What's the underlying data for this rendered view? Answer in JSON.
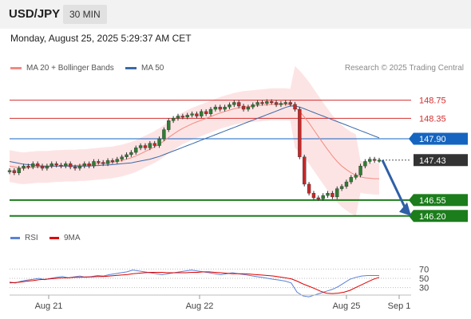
{
  "header": {
    "symbol": "USD/JPY",
    "timeframe": "30 MIN"
  },
  "timestamp": "Monday, August 25, 2025 5:29:37 AM CET",
  "legend": {
    "ma20": {
      "label": "MA 20 + Bollinger Bands",
      "color": "#f28b82"
    },
    "ma50": {
      "label": "MA 50",
      "color": "#3c6aa8"
    }
  },
  "credit": "Research © 2025 Trading Central",
  "rsi_legend": {
    "rsi": {
      "label": "RSI",
      "color": "#5b82d6"
    },
    "ma9": {
      "label": "9MA",
      "color": "#e00000"
    }
  },
  "chart_data": [
    {
      "type": "candlestick",
      "x_axis": {
        "ticks": [
          "Aug 21",
          "Aug 22",
          "Aug 25",
          "Sep 1"
        ]
      },
      "y_axis": {
        "range": [
          145.95,
          149.2
        ]
      },
      "grid": false,
      "levels": [
        {
          "value": 148.75,
          "label": "148.75",
          "color": "#d32f2f",
          "style": "red-line"
        },
        {
          "value": 148.35,
          "label": "148.35",
          "color": "#d32f2f",
          "style": "red-line"
        },
        {
          "value": 147.9,
          "label": "147.90",
          "color": "#1565c0",
          "style": "blue-line"
        },
        {
          "value": 147.43,
          "label": "147.43",
          "color": "#333333",
          "style": "current-price"
        },
        {
          "value": 146.55,
          "label": "146.55",
          "color": "#1b7d1b",
          "style": "green-line"
        },
        {
          "value": 146.2,
          "label": "146.20",
          "color": "#1b7d1b",
          "style": "green-line"
        }
      ],
      "close_series": [
        147.2,
        147.15,
        147.25,
        147.3,
        147.28,
        147.35,
        147.3,
        147.25,
        147.3,
        147.35,
        147.32,
        147.3,
        147.35,
        147.28,
        147.25,
        147.3,
        147.35,
        147.3,
        147.4,
        147.38,
        147.35,
        147.42,
        147.4,
        147.45,
        147.5,
        147.55,
        147.6,
        147.7,
        147.75,
        147.7,
        147.8,
        147.75,
        147.9,
        148.1,
        148.3,
        148.35,
        148.4,
        148.38,
        148.42,
        148.45,
        148.4,
        148.5,
        148.45,
        148.55,
        148.6,
        148.55,
        148.6,
        148.65,
        148.7,
        148.62,
        148.55,
        148.6,
        148.65,
        148.7,
        148.68,
        148.72,
        148.7,
        148.65,
        148.68,
        148.7,
        148.66,
        148.55,
        147.5,
        146.9,
        146.7,
        146.6,
        146.58,
        146.65,
        146.7,
        146.62,
        146.8,
        146.85,
        146.95,
        147.05,
        147.1,
        147.3,
        147.4,
        147.45,
        147.42,
        147.43
      ],
      "ma20_series": [
        147.3,
        147.28,
        147.26,
        147.25,
        147.26,
        147.27,
        147.28,
        147.28,
        147.28,
        147.29,
        147.3,
        147.3,
        147.31,
        147.31,
        147.31,
        147.32,
        147.32,
        147.33,
        147.34,
        147.35,
        147.36,
        147.37,
        147.38,
        147.4,
        147.42,
        147.45,
        147.48,
        147.52,
        147.57,
        147.62,
        147.67,
        147.72,
        147.78,
        147.85,
        147.93,
        148.0,
        148.07,
        148.13,
        148.18,
        148.23,
        148.27,
        148.31,
        148.35,
        148.39,
        148.43,
        148.47,
        148.5,
        148.53,
        148.56,
        148.58,
        148.6,
        148.61,
        148.62,
        148.63,
        148.64,
        148.65,
        148.66,
        148.66,
        148.66,
        148.66,
        148.65,
        148.6,
        148.5,
        148.38,
        148.25,
        148.1,
        147.95,
        147.8,
        147.66,
        147.52,
        147.4,
        147.3,
        147.22,
        147.15,
        147.1,
        147.06,
        147.04,
        147.03,
        147.02,
        147.02
      ],
      "ma50_series": [
        147.4,
        147.38,
        147.36,
        147.34,
        147.33,
        147.32,
        147.31,
        147.3,
        147.3,
        147.3,
        147.3,
        147.3,
        147.3,
        147.3,
        147.3,
        147.3,
        147.3,
        147.3,
        147.31,
        147.31,
        147.32,
        147.32,
        147.33,
        147.34,
        147.35,
        147.36,
        147.37,
        147.39,
        147.41,
        147.43,
        147.45,
        147.48,
        147.51,
        147.55,
        147.59,
        147.63,
        147.67,
        147.71,
        147.75,
        147.79,
        147.83,
        147.87,
        147.91,
        147.95,
        147.99,
        148.03,
        148.07,
        148.11,
        148.15,
        148.19,
        148.23,
        148.27,
        148.31,
        148.35,
        148.39,
        148.43,
        148.47,
        148.51,
        148.55,
        148.59,
        148.62,
        148.62,
        148.6,
        148.56,
        148.52,
        148.48,
        148.44,
        148.4,
        148.36,
        148.32,
        148.28,
        148.24,
        148.2,
        148.16,
        148.12,
        148.08,
        148.04,
        148.0,
        147.96,
        147.92
      ]
    },
    {
      "type": "line",
      "title": "RSI",
      "y_axis": {
        "ticks": [
          70,
          50,
          30
        ],
        "range": [
          0,
          100
        ]
      },
      "series": [
        {
          "name": "RSI",
          "values": [
            42,
            40,
            44,
            46,
            48,
            50,
            47,
            50,
            52,
            54,
            51,
            53,
            55,
            52,
            54,
            56,
            55,
            58,
            60,
            62,
            64,
            68,
            66,
            64,
            62,
            60,
            58,
            60,
            62,
            64,
            66,
            68,
            66,
            64,
            62,
            60,
            58,
            60,
            62,
            60,
            58,
            56,
            54,
            52,
            50,
            48,
            46,
            44,
            40,
            20,
            12,
            10,
            14,
            18,
            22,
            26,
            32,
            40,
            48,
            52,
            55,
            56,
            56,
            56
          ]
        },
        {
          "name": "9MA",
          "values": [
            40,
            41,
            42,
            44,
            45,
            47,
            48,
            49,
            50,
            51,
            51,
            52,
            52,
            53,
            53,
            54,
            54,
            55,
            56,
            57,
            58,
            60,
            61,
            62,
            63,
            63,
            63,
            62,
            62,
            62,
            62,
            63,
            63,
            64,
            64,
            63,
            62,
            61,
            60,
            60,
            60,
            59,
            58,
            57,
            56,
            55,
            53,
            51,
            49,
            44,
            38,
            33,
            28,
            22,
            18,
            17,
            18,
            20,
            24,
            30,
            36,
            42,
            48,
            52
          ]
        }
      ]
    }
  ]
}
